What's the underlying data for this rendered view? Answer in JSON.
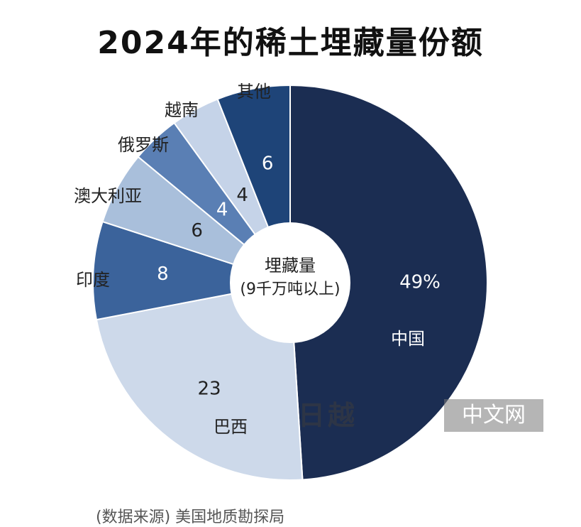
{
  "title": "2024年的稀土埋藏量份额",
  "center_label": {
    "line1": "埋藏量",
    "line2": "(9千万吨以上)"
  },
  "source": "(数据来源) 美国地质勘探局",
  "watermark": {
    "logo": "日越",
    "text": "中文网"
  },
  "chart_data": {
    "type": "pie",
    "title": "2024年的稀土埋藏量份额",
    "donut": true,
    "start": "top, clockwise",
    "slices": [
      {
        "name": "中国",
        "value": 49,
        "value_label": "49%",
        "color": "#1b2d52"
      },
      {
        "name": "巴西",
        "value": 23,
        "value_label": "23",
        "color": "#cdd9ea"
      },
      {
        "name": "印度",
        "value": 8,
        "value_label": "8",
        "color": "#3b639b"
      },
      {
        "name": "澳大利亚",
        "value": 6,
        "value_label": "6",
        "color": "#a9bfdb"
      },
      {
        "name": "俄罗斯",
        "value": 4,
        "value_label": "4",
        "color": "#5a7fb4"
      },
      {
        "name": "越南",
        "value": 4,
        "value_label": "4",
        "color": "#c5d3e8"
      },
      {
        "name": "其他",
        "value": 6,
        "value_label": "6",
        "color": "#1e4478"
      }
    ]
  }
}
